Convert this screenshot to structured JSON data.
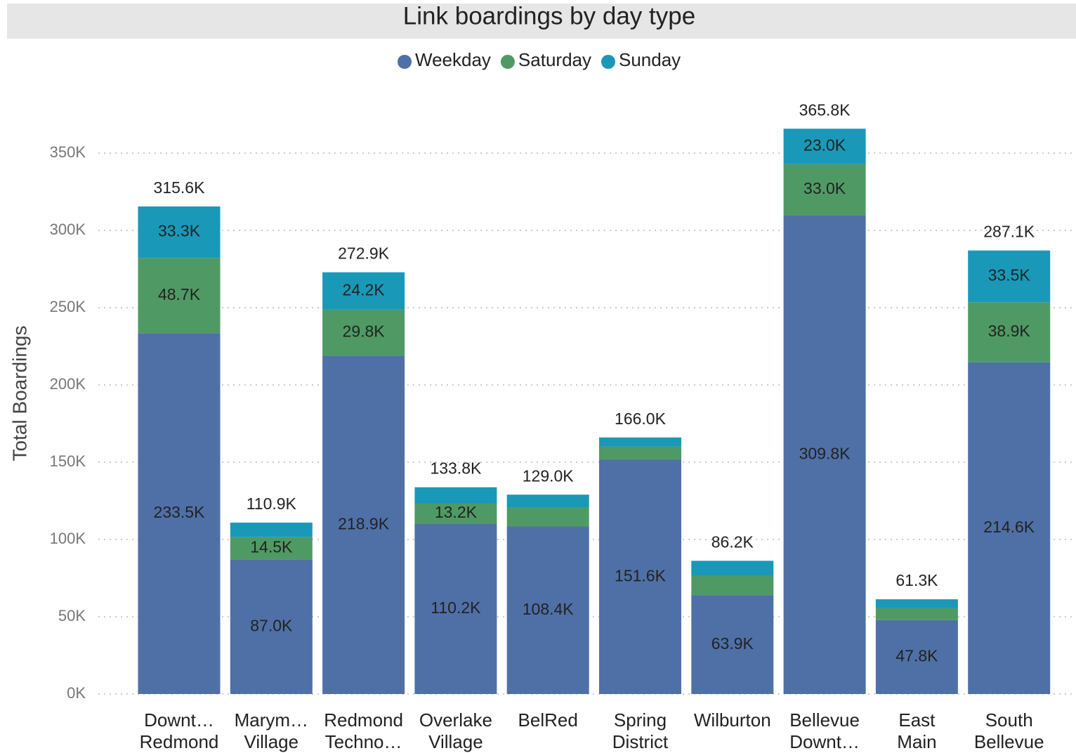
{
  "chart_data": {
    "type": "stacked_bar",
    "title": "Link boardings by day type",
    "y_label": "Total Boardings",
    "categories": [
      [
        "Downt…",
        "Redmond"
      ],
      [
        "Marym…",
        "Village"
      ],
      [
        "Redmond",
        "Techno…"
      ],
      [
        "Overlake",
        "Village"
      ],
      [
        "BelRed"
      ],
      [
        "Spring",
        "District"
      ],
      [
        "Wilburton"
      ],
      [
        "Bellevue",
        "Downt…"
      ],
      [
        "East",
        "Main"
      ],
      [
        "South",
        "Bellevue"
      ]
    ],
    "series": [
      {
        "name": "Weekday",
        "color": "#4e70a6",
        "values": [
          233500,
          87000,
          218900,
          110200,
          108400,
          151600,
          63900,
          309800,
          47800,
          214600
        ],
        "value_labels": [
          "233.5K",
          "87.0K",
          "218.9K",
          "110.2K",
          "108.4K",
          "151.6K",
          "63.9K",
          "309.8K",
          "47.8K",
          "214.6K"
        ]
      },
      {
        "name": "Saturday",
        "color": "#4f9a64",
        "values": [
          48700,
          14500,
          29800,
          13200,
          12300,
          8600,
          12700,
          33000,
          7700,
          38900
        ],
        "value_labels": [
          "48.7K",
          "14.5K",
          "29.8K",
          "13.2K",
          null,
          null,
          null,
          "33.0K",
          null,
          "38.9K"
        ]
      },
      {
        "name": "Sunday",
        "color": "#1a98b8",
        "values": [
          33300,
          9400,
          24200,
          10400,
          8300,
          5800,
          9600,
          23000,
          5800,
          33500
        ],
        "value_labels": [
          "33.3K",
          null,
          "24.2K",
          null,
          null,
          null,
          null,
          "23.0K",
          null,
          "33.5K"
        ]
      }
    ],
    "totals": [
      315600,
      110900,
      272900,
      133800,
      129000,
      166000,
      86200,
      365800,
      61300,
      287100
    ],
    "total_labels": [
      "315.6K",
      "110.9K",
      "272.9K",
      "133.8K",
      "129.0K",
      "166.0K",
      "86.2K",
      "365.8K",
      "61.3K",
      "287.1K"
    ],
    "ylim": [
      0,
      400000
    ],
    "yticks": [
      {
        "value": 0,
        "label": "0K"
      },
      {
        "value": 50000,
        "label": "50K"
      },
      {
        "value": 100000,
        "label": "100K"
      },
      {
        "value": 150000,
        "label": "150K"
      },
      {
        "value": 200000,
        "label": "200K"
      },
      {
        "value": 250000,
        "label": "250K"
      },
      {
        "value": 300000,
        "label": "300K"
      },
      {
        "value": 350000,
        "label": "350K"
      }
    ],
    "grid": true,
    "legend": "top"
  }
}
